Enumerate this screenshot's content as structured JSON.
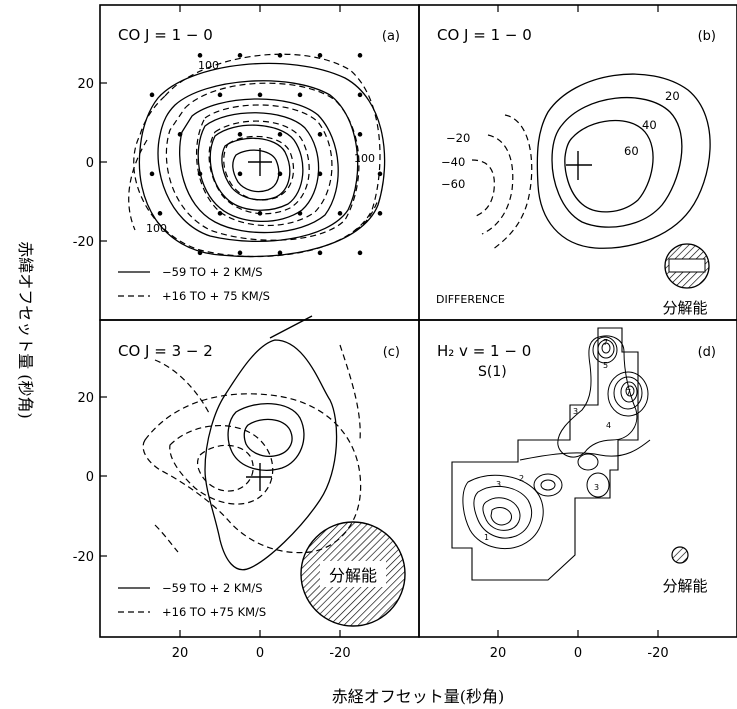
{
  "figure": {
    "xlabel": "赤経オフセット量(秒角)",
    "ylabel": "赤緯オフセット量 (秒角)"
  },
  "chart_data": [
    {
      "type": "contour",
      "panel": "a",
      "title": "CO   J = 1 − 0",
      "panel_label": "(a)",
      "xlim": [
        40,
        -40
      ],
      "ylim": [
        -30,
        30
      ],
      "xticks": [
        20,
        0,
        -20
      ],
      "yticks": [
        20,
        0,
        -20
      ],
      "center": [
        0,
        0
      ],
      "contour_labels": [
        "100",
        "100",
        "100"
      ],
      "sample_points": [
        [
          15,
          27
        ],
        [
          5,
          27
        ],
        [
          -5,
          27
        ],
        [
          -15,
          27
        ],
        [
          -25,
          27
        ],
        [
          27,
          17
        ],
        [
          10,
          17
        ],
        [
          0,
          17
        ],
        [
          -10,
          17
        ],
        [
          -25,
          17
        ],
        [
          20,
          7
        ],
        [
          5,
          7
        ],
        [
          -5,
          7
        ],
        [
          -15,
          7
        ],
        [
          -25,
          7
        ],
        [
          27,
          -3
        ],
        [
          15,
          -3
        ],
        [
          5,
          -3
        ],
        [
          -5,
          -3
        ],
        [
          -15,
          -3
        ],
        [
          -30,
          -3
        ],
        [
          25,
          -13
        ],
        [
          10,
          -13
        ],
        [
          0,
          -13
        ],
        [
          -10,
          -13
        ],
        [
          -20,
          -13
        ],
        [
          -30,
          -13
        ],
        [
          15,
          -23
        ],
        [
          5,
          -23
        ],
        [
          -5,
          -23
        ],
        [
          -15,
          -23
        ],
        [
          -25,
          -23
        ]
      ],
      "series": [
        {
          "name": "−59 TO + 2 KM/S",
          "style": "solid"
        },
        {
          "name": "+16 TO + 75 KM/S",
          "style": "dashed"
        }
      ],
      "legend": [
        "−59 TO + 2 KM/S",
        "+16 TO + 75 KM/S"
      ],
      "legend_position": "bottom-left"
    },
    {
      "type": "contour",
      "panel": "b",
      "title": "CO   J = 1 − 0",
      "panel_label": "(b)",
      "note": "DIFFERENCE",
      "resolution_label": "分解能",
      "xlim": [
        40,
        -40
      ],
      "ylim": [
        -30,
        30
      ],
      "contour_labels": [
        "20",
        "40",
        "60",
        "−20",
        "−40",
        "−60"
      ],
      "positive_levels": [
        20,
        40,
        60
      ],
      "negative_levels": [
        -20,
        -40,
        -60
      ]
    },
    {
      "type": "contour",
      "panel": "c",
      "title": "CO   J = 3 − 2",
      "panel_label": "(c)",
      "resolution_label": "分解能",
      "xlim": [
        40,
        -40
      ],
      "ylim": [
        -30,
        30
      ],
      "xticks": [
        20,
        0,
        -20
      ],
      "yticks": [
        20,
        0,
        -20
      ],
      "series": [
        {
          "name": "−59 TO + 2 KM/S",
          "style": "solid"
        },
        {
          "name": "+16 TO +75 KM/S",
          "style": "dashed"
        }
      ],
      "legend": [
        "−59 TO + 2 KM/S",
        "+16 TO +75 KM/S"
      ],
      "legend_position": "bottom-left"
    },
    {
      "type": "contour",
      "panel": "d",
      "title": "H₂   v = 1 − 0",
      "subtitle": "S(1)",
      "panel_label": "(d)",
      "resolution_label": "分解能",
      "xlim": [
        40,
        -40
      ],
      "ylim": [
        -30,
        30
      ],
      "xticks": [
        20,
        0,
        -20
      ],
      "contour_labels": [
        "1",
        "2",
        "3",
        "4",
        "5",
        "6",
        "7"
      ]
    }
  ]
}
